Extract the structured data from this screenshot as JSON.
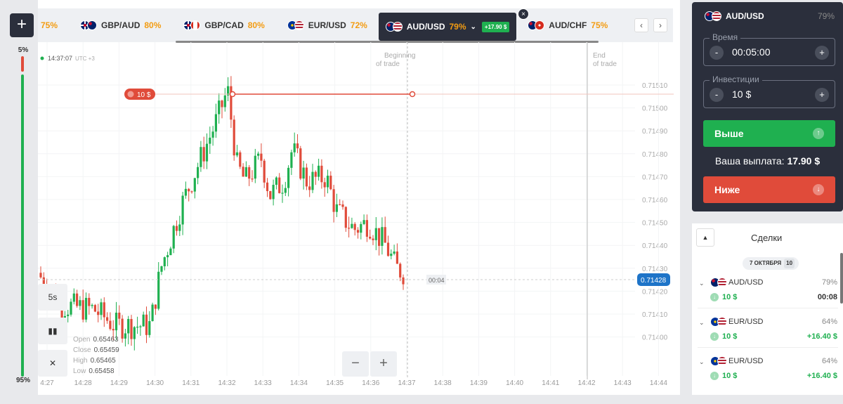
{
  "sentiment": {
    "top_pct": "5%",
    "bottom_pct": "95%"
  },
  "add_button_label": "+",
  "tabs": [
    {
      "pair": "",
      "pct": "75%",
      "flags": [
        "",
        ""
      ]
    },
    {
      "pair": "GBP/AUD",
      "pct": "80%",
      "flags": [
        "f-gb",
        "f-au"
      ]
    },
    {
      "pair": "GBP/CAD",
      "pct": "80%",
      "flags": [
        "f-gb",
        "f-ca"
      ]
    },
    {
      "pair": "EUR/USD",
      "pct": "72%",
      "flags": [
        "f-eu",
        "f-us"
      ]
    },
    {
      "pair": "AUD/USD",
      "pct": "79%",
      "flags": [
        "f-au",
        "f-us"
      ],
      "active": true,
      "profit": "+17.90 $"
    },
    {
      "pair": "AUD/CHF",
      "pct": "75%",
      "flags": [
        "f-au",
        "f-ch"
      ]
    }
  ],
  "tab_close": "×",
  "nav": {
    "prev": "‹",
    "next": "›"
  },
  "chart": {
    "time": "14:37:07",
    "timezone": "UTC +3",
    "beginning_label": [
      "Beginning",
      "of trade"
    ],
    "end_label": [
      "End",
      "of trade"
    ],
    "trade_marker": "10 $",
    "current_price": "0.71428",
    "countdown": "00:04",
    "timeframe": "5s",
    "y_ticks": [
      "0.71510",
      "0.71500",
      "0.71490",
      "0.71480",
      "0.71470",
      "0.71460",
      "0.71450",
      "0.71440",
      "0.71430",
      "0.71420",
      "0.71410",
      "0.71400"
    ],
    "x_ticks": [
      "4:27",
      "14:28",
      "14:29",
      "14:30",
      "14:31",
      "14:32",
      "14:33",
      "14:34",
      "14:35",
      "14:36",
      "14:37",
      "14:38",
      "14:39",
      "14:40",
      "14:41",
      "14:42",
      "14:43",
      "14:44"
    ],
    "ohlc": {
      "open_label": "Open",
      "open": "0.65463",
      "close_label": "Close",
      "close": "0.65459",
      "high_label": "High",
      "high": "0.65465",
      "low_label": "Low",
      "low": "0.65458"
    },
    "zoom_out": "−",
    "zoom_in": "+",
    "colors": {
      "up": "#1fb050",
      "down": "#e04b3a",
      "accent": "#1e74c8"
    }
  },
  "trade": {
    "pair": "AUD/USD",
    "pct": "79%",
    "time_label": "Время",
    "time_value": "00:05:00",
    "invest_label": "Инвестиции",
    "invest_value": "10 $",
    "up_label": "Выше",
    "down_label": "Ниже",
    "payout_label": "Ваша выплата:",
    "payout_value": "17.90 $"
  },
  "deals": {
    "title": "Сделки",
    "date": "7 ОКТЯБРЯ",
    "count": "10",
    "items": [
      {
        "pair": "AUD/USD",
        "pct": "79%",
        "amount": "10 $",
        "result": "00:08",
        "kind": "time",
        "flags": [
          "f-au",
          "f-us"
        ]
      },
      {
        "pair": "EUR/USD",
        "pct": "64%",
        "amount": "10 $",
        "result": "+16.40 $",
        "kind": "win",
        "flags": [
          "f-eu",
          "f-us"
        ]
      },
      {
        "pair": "EUR/USD",
        "pct": "64%",
        "amount": "10 $",
        "result": "+16.40 $",
        "kind": "win",
        "flags": [
          "f-eu",
          "f-us"
        ]
      }
    ]
  }
}
